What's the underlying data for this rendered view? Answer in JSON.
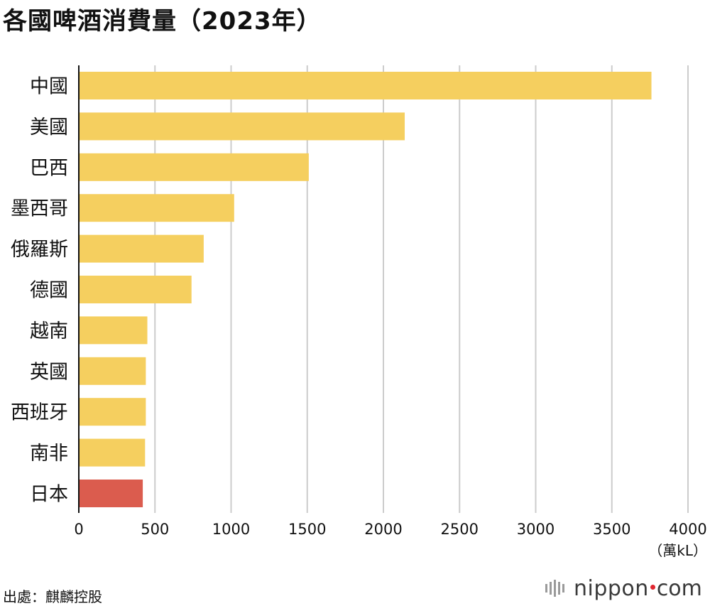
{
  "title": "各國啤酒消費量（2023年）",
  "source": "出處：麒麟控股",
  "logo": {
    "name": "nippon",
    "ext": "com"
  },
  "colors": {
    "bar": "#F5CF5F",
    "highlight": "#DB5C4E",
    "grid": "#CCCCCC",
    "axis": "#111111",
    "logo_dot": "#E0262F"
  },
  "chart_data": {
    "type": "bar",
    "orientation": "horizontal",
    "categories": [
      "中國",
      "美國",
      "巴西",
      "墨西哥",
      "俄羅斯",
      "德國",
      "越南",
      "英國",
      "西班牙",
      "南非",
      "日本"
    ],
    "values": [
      3760,
      2140,
      1510,
      1020,
      820,
      740,
      450,
      440,
      440,
      435,
      420
    ],
    "highlight": "日本",
    "xlim": [
      0,
      4000
    ],
    "xticks": [
      "0",
      "500",
      "1000",
      "1500",
      "2000",
      "2500",
      "3000",
      "3500",
      "4000"
    ],
    "xunit": "（萬kL）",
    "grid": true
  }
}
